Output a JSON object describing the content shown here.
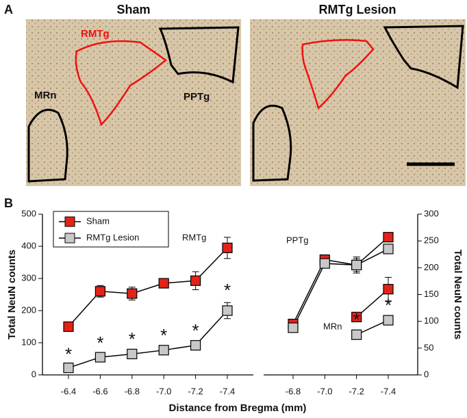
{
  "panel_a": {
    "label": "A",
    "sham_title": "Sham",
    "lesion_title": "RMTg Lesion",
    "regions": {
      "rmtg": "RMTg",
      "mrn": "MRn",
      "pptg": "PPTg"
    }
  },
  "panel_b": {
    "label": "B",
    "x_label": "Distance from Bregma (mm)"
  },
  "chart_data": [
    {
      "type": "line",
      "categories": [
        "-6.4",
        "-6.6",
        "-6.8",
        "-7.0",
        "-7.2",
        "-7.4"
      ],
      "y_label": "Total NeuN counts",
      "ylim": [
        0,
        500
      ],
      "yticks": [
        0,
        100,
        200,
        300,
        400,
        500
      ],
      "legend": "upper left",
      "annotation": "RMTg",
      "significance": [
        "*",
        "*",
        "*",
        "*",
        "*",
        "*"
      ],
      "series": [
        {
          "name": "Sham",
          "color": "#e2231a",
          "values": [
            150,
            260,
            253,
            285,
            293,
            395
          ],
          "errors": [
            4,
            18,
            20,
            12,
            28,
            33
          ]
        },
        {
          "name": "RMTg Lesion",
          "color": "#c8c8c8",
          "values": [
            22,
            55,
            65,
            77,
            92,
            200
          ],
          "errors": [
            4,
            6,
            8,
            8,
            8,
            25
          ]
        }
      ]
    },
    {
      "type": "line",
      "categories": [
        "-6.8",
        "-7.0",
        "-7.2",
        "-7.4"
      ],
      "y2_label": "Total  NeuN counts",
      "y2lim": [
        0,
        300
      ],
      "y2ticks": [
        0,
        50,
        100,
        150,
        200,
        250,
        300
      ],
      "annotations": [
        "PPTg",
        "MRn"
      ],
      "significance": [
        null,
        null,
        "*",
        "*"
      ],
      "series": [
        {
          "color": "#e2231a",
          "axis": "y2",
          "values": [
            95,
            215,
            205,
            257
          ],
          "errors": [
            3,
            8,
            15,
            8
          ]
        },
        {
          "color": "#c8c8c8",
          "axis": "y2",
          "values": [
            88,
            208,
            205,
            235
          ],
          "errors": [
            3,
            5,
            12,
            5
          ]
        },
        {
          "color": "#e2231a",
          "axis": "y2",
          "values": [
            null,
            null,
            108,
            160
          ],
          "errors": [
            null,
            null,
            5,
            22
          ]
        },
        {
          "color": "#c8c8c8",
          "axis": "y2",
          "values": [
            null,
            null,
            75,
            102
          ],
          "errors": [
            null,
            null,
            5,
            5
          ]
        }
      ]
    }
  ]
}
